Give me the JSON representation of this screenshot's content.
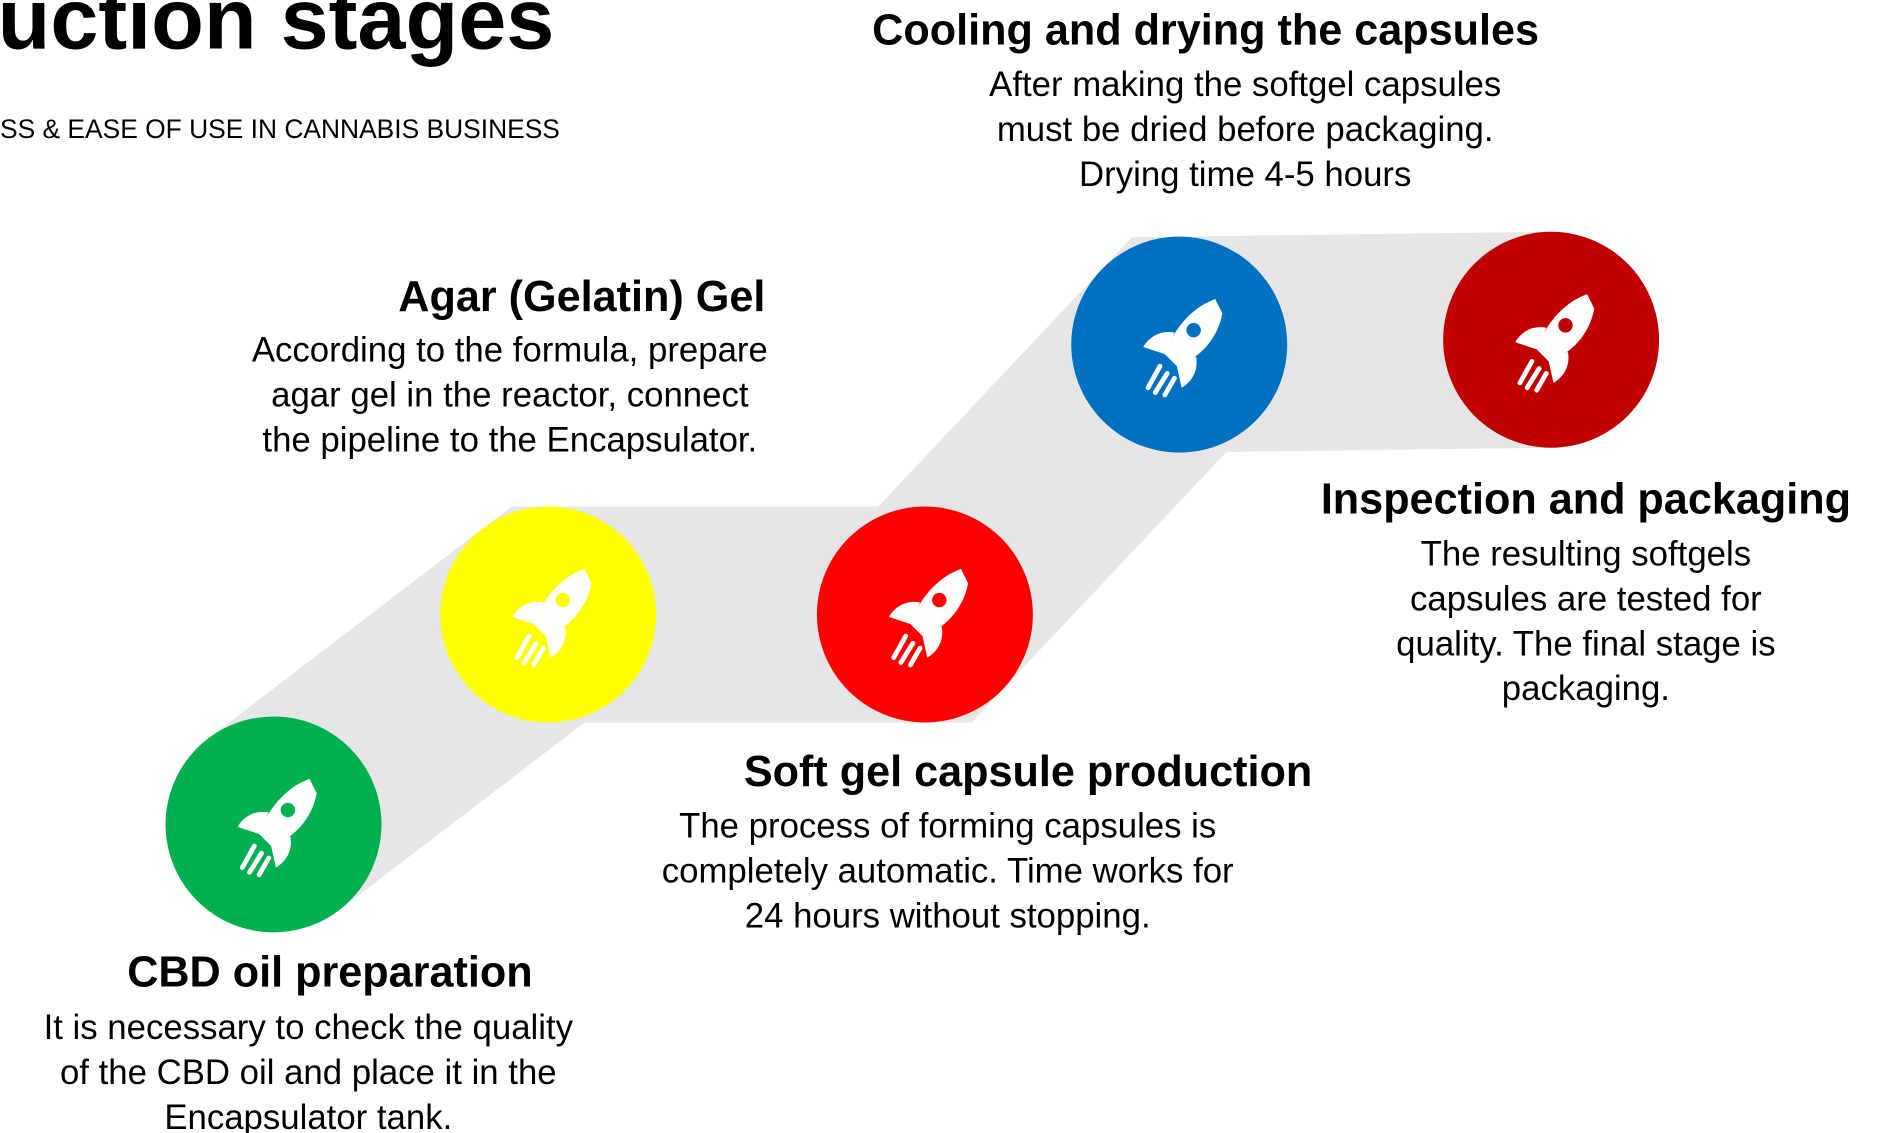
{
  "header": {
    "title": "uction stages",
    "subtitle": "SS & EASE OF USE IN CANNABIS BUSINESS"
  },
  "steps": [
    {
      "title": "CBD oil preparation",
      "lines": [
        "It is necessary to check the quality",
        "of the CBD oil and place it in the",
        "Encapsulator tank."
      ]
    },
    {
      "title": "Agar (Gelatin) Gel",
      "lines": [
        "According to the formula, prepare",
        "agar gel in the reactor, connect",
        "the pipeline to the Encapsulator."
      ]
    },
    {
      "title": "Soft gel capsule production",
      "lines": [
        "The process of forming capsules is",
        "completely automatic. Time works for",
        "24 hours without stopping."
      ]
    },
    {
      "title": "Cooling and drying the capsules",
      "lines": [
        "After making the softgel capsules",
        "must be dried before packaging.",
        "Drying time 4-5 hours"
      ]
    },
    {
      "title": "Inspection and packaging",
      "lines": [
        "The resulting softgels",
        "capsules are tested for",
        "quality. The final stage is",
        "packaging."
      ]
    }
  ]
}
